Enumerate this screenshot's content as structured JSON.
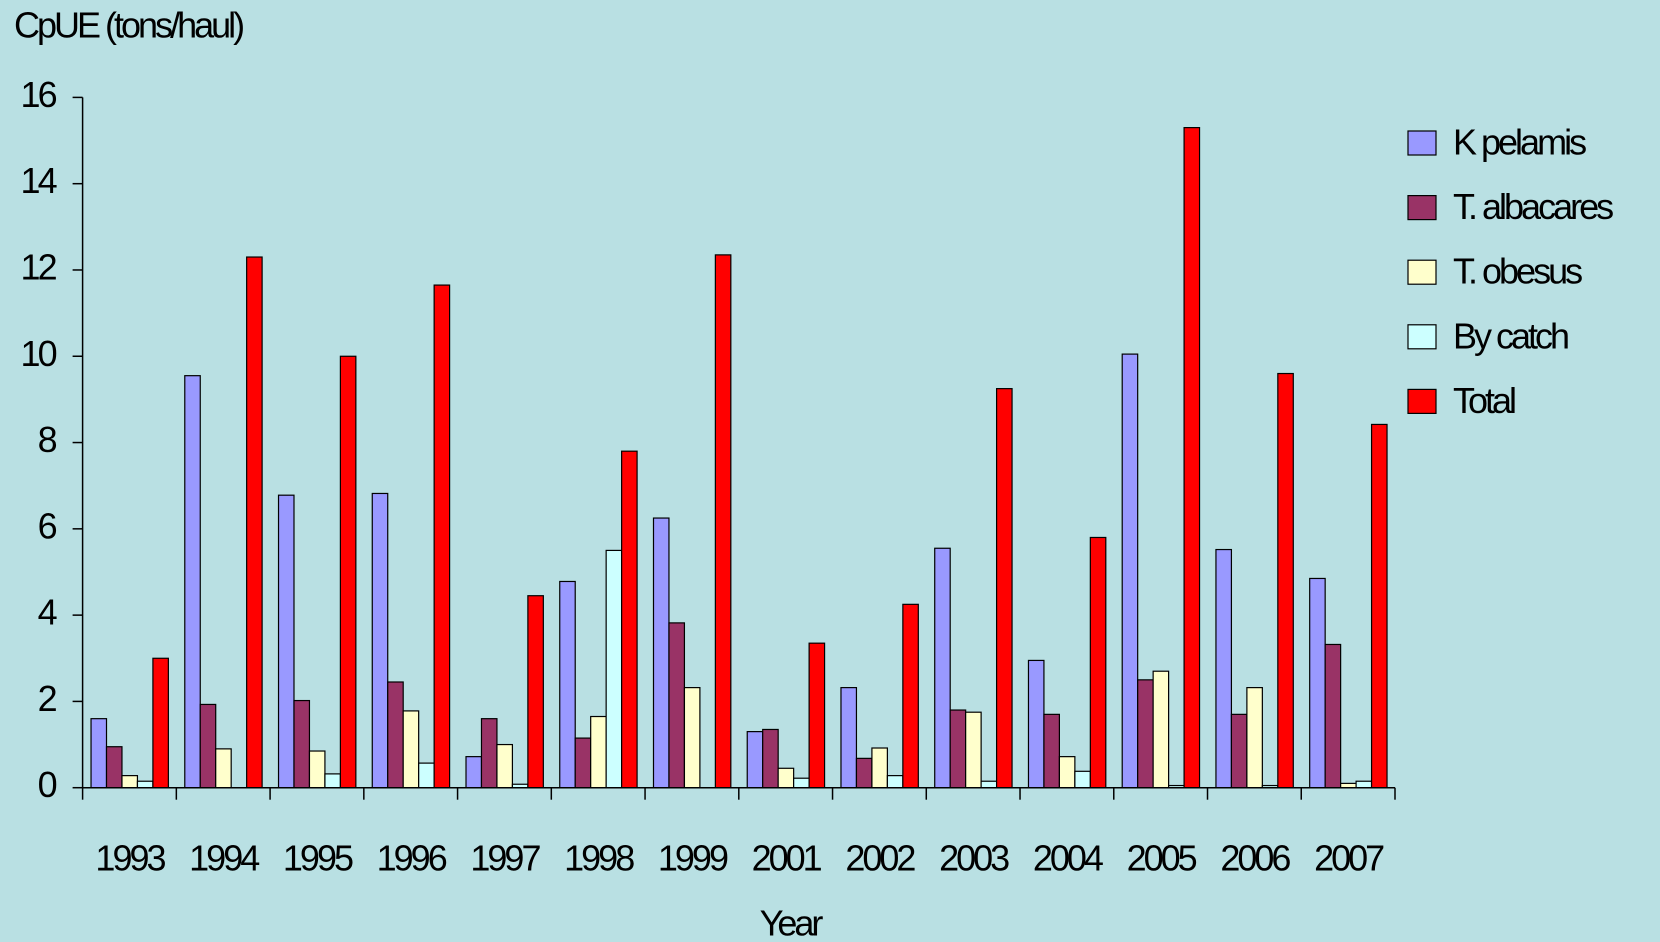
{
  "chart_data": {
    "type": "bar",
    "y_label": "CpUE (tons/haul)",
    "x_label": "Year",
    "categories": [
      "1993",
      "1994",
      "1995",
      "1996",
      "1997",
      "1998",
      "1999",
      "2001",
      "2002",
      "2003",
      "2004",
      "2005",
      "2006",
      "2007"
    ],
    "series": [
      {
        "name": "K pelamis",
        "color": "#9999ff",
        "values": [
          1.6,
          9.55,
          6.78,
          6.82,
          0.72,
          4.78,
          6.25,
          1.3,
          2.32,
          5.55,
          2.95,
          10.05,
          5.52,
          4.85
        ]
      },
      {
        "name": "T. albacares",
        "color": "#993366",
        "values": [
          0.95,
          1.93,
          2.02,
          2.45,
          1.6,
          1.15,
          3.82,
          1.35,
          0.68,
          1.8,
          1.7,
          2.5,
          1.7,
          3.32
        ]
      },
      {
        "name": "T. obesus",
        "color": "#ffffcc",
        "values": [
          0.28,
          0.9,
          0.85,
          1.78,
          1.0,
          1.65,
          2.32,
          0.45,
          0.92,
          1.75,
          0.72,
          2.7,
          2.32,
          0.1
        ]
      },
      {
        "name": "By catch",
        "color": "#ccffff",
        "values": [
          0.15,
          0,
          0.32,
          0.57,
          0.08,
          5.5,
          0,
          0.22,
          0.28,
          0.15,
          0.38,
          0.05,
          0.05,
          0.15
        ]
      },
      {
        "name": "Total",
        "color": "#ff0000",
        "values": [
          3.0,
          12.3,
          10.0,
          11.65,
          4.45,
          7.8,
          12.35,
          3.35,
          4.25,
          9.25,
          5.8,
          15.3,
          9.6,
          8.42
        ]
      }
    ],
    "ylim": [
      0,
      16
    ],
    "yticks": [
      0,
      2,
      4,
      6,
      8,
      10,
      12,
      14,
      16
    ],
    "legend": "right",
    "background": "#b9e0e3"
  }
}
